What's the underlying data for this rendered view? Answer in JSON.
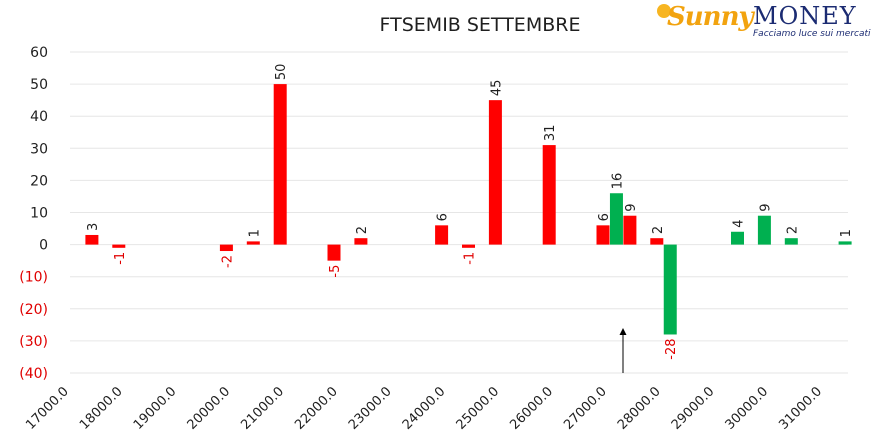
{
  "title": "FTSEMIB SETTEMBRE",
  "logo": {
    "brand_first": "Sunny",
    "brand_second": "MONEY",
    "tagline": "Facciamo luce sui mercati"
  },
  "colors": {
    "red": "#ff0000",
    "green": "#00b050",
    "negative_label": "#e00000",
    "grid": "#e6e6e6",
    "text": "#1f1f1f"
  },
  "chart_data": {
    "type": "bar",
    "title": "FTSEMIB SETTEMBRE",
    "xlabel": "",
    "ylabel": "",
    "ylim": [
      -40,
      60
    ],
    "yticks": [
      "60",
      "50",
      "40",
      "30",
      "20",
      "10",
      "0",
      "(10)",
      "(20)",
      "(30)",
      "(40)"
    ],
    "ytick_values": [
      60,
      50,
      40,
      30,
      20,
      10,
      0,
      -10,
      -20,
      -30,
      -40
    ],
    "categories": [
      "17000.0",
      "18000.0",
      "19000.0",
      "20000.0",
      "21000.0",
      "22000.0",
      "23000.0",
      "24000.0",
      "25000.0",
      "26000.0",
      "27000.0",
      "28000.0",
      "29000.0",
      "30000.0",
      "31000.0"
    ],
    "grid": true,
    "legend": "none",
    "bars": [
      {
        "x": 17500,
        "value": 3,
        "color": "red",
        "label": "3"
      },
      {
        "x": 18000,
        "value": -1,
        "color": "red",
        "label": "-1"
      },
      {
        "x": 20000,
        "value": -2,
        "color": "red",
        "label": "-2"
      },
      {
        "x": 20500,
        "value": 1,
        "color": "red",
        "label": "1"
      },
      {
        "x": 21000,
        "value": 50,
        "color": "red",
        "label": "50"
      },
      {
        "x": 22000,
        "value": -5,
        "color": "red",
        "label": "-5"
      },
      {
        "x": 22500,
        "value": 2,
        "color": "red",
        "label": "2"
      },
      {
        "x": 24000,
        "value": 6,
        "color": "red",
        "label": "6"
      },
      {
        "x": 24500,
        "value": -1,
        "color": "red",
        "label": "-1"
      },
      {
        "x": 25000,
        "value": 45,
        "color": "red",
        "label": "45"
      },
      {
        "x": 26000,
        "value": 31,
        "color": "red",
        "label": "31"
      },
      {
        "x": 27000,
        "value": 6,
        "color": "red",
        "label": "6"
      },
      {
        "x": 27250,
        "value": 16,
        "color": "green",
        "label": "16"
      },
      {
        "x": 27500,
        "value": 9,
        "color": "red",
        "label": "9"
      },
      {
        "x": 28000,
        "value": 2,
        "color": "red",
        "label": "2"
      },
      {
        "x": 28250,
        "value": -28,
        "color": "green",
        "label": "-28"
      },
      {
        "x": 29500,
        "value": 4,
        "color": "green",
        "label": "4"
      },
      {
        "x": 30000,
        "value": 9,
        "color": "green",
        "label": "9"
      },
      {
        "x": 30500,
        "value": 2,
        "color": "green",
        "label": "2"
      },
      {
        "x": 31500,
        "value": 1,
        "color": "green",
        "label": "1"
      }
    ],
    "annotations": [
      {
        "type": "arrow",
        "x": 27000,
        "y_from": -40,
        "y_to": -26
      }
    ]
  }
}
